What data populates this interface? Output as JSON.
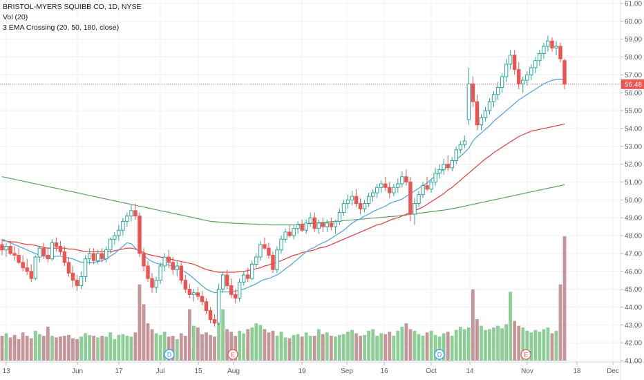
{
  "legend": {
    "title": "BRISTOL-MYERS SQUIBB CO, 1D, NYSE",
    "vol": "Vol (20)",
    "ema": "3 EMA Crossing (20, 50, 180, close)"
  },
  "colors": {
    "up": "#26a69a",
    "down": "#ef5350",
    "vol_up": "#7fc98a",
    "vol_down": "#c08a8f",
    "ema20": "#4a9fe0",
    "ema50": "#e03a3a",
    "ema180": "#5e9e5e",
    "price_line": "#ef5350"
  },
  "chart_data": {
    "type": "candlestick",
    "ylim": [
      41,
      61
    ],
    "y_ticks": [
      "41.00",
      "42.00",
      "43.00",
      "44.00",
      "45.00",
      "46.00",
      "47.00",
      "48.00",
      "49.00",
      "50.00",
      "51.00",
      "52.00",
      "53.00",
      "54.00",
      "55.00",
      "56.00",
      "57.00",
      "58.00",
      "59.00",
      "60.00",
      "61.00"
    ],
    "x_ticks": [
      "13",
      "Jun",
      "17",
      "Jul",
      "15",
      "Aug",
      "19",
      "Sep",
      "16",
      "Oct",
      "14",
      "Nov",
      "18",
      "Dec"
    ],
    "last_price": "56.48",
    "events": [
      "D",
      "E",
      "D",
      "E"
    ],
    "ohlc": [
      [
        47.5,
        47.8,
        46.9,
        47.2
      ],
      [
        47.2,
        47.6,
        46.8,
        47.4
      ],
      [
        47.4,
        47.7,
        46.9,
        47.0
      ],
      [
        47.0,
        47.4,
        46.6,
        46.9
      ],
      [
        46.9,
        47.3,
        46.4,
        46.5
      ],
      [
        46.5,
        46.9,
        46.0,
        46.2
      ],
      [
        46.2,
        46.7,
        45.8,
        46.0
      ],
      [
        46.0,
        46.4,
        45.4,
        45.6
      ],
      [
        45.6,
        46.9,
        45.5,
        46.8
      ],
      [
        46.8,
        47.4,
        46.5,
        47.3
      ],
      [
        47.3,
        47.6,
        46.7,
        46.9
      ],
      [
        46.9,
        47.3,
        46.5,
        46.7
      ],
      [
        46.7,
        47.8,
        46.6,
        47.6
      ],
      [
        47.6,
        47.9,
        47.1,
        47.4
      ],
      [
        47.4,
        47.7,
        46.9,
        47.1
      ],
      [
        47.1,
        47.4,
        46.3,
        46.5
      ],
      [
        46.5,
        46.8,
        45.7,
        45.9
      ],
      [
        45.9,
        46.3,
        45.1,
        45.5
      ],
      [
        45.5,
        45.8,
        44.9,
        45.2
      ],
      [
        45.2,
        46.0,
        45.0,
        45.7
      ],
      [
        45.7,
        46.9,
        45.4,
        46.7
      ],
      [
        46.7,
        47.3,
        46.4,
        47.0
      ],
      [
        47.0,
        47.3,
        46.4,
        46.6
      ],
      [
        46.6,
        47.2,
        46.4,
        47.0
      ],
      [
        47.0,
        47.3,
        46.5,
        46.7
      ],
      [
        46.7,
        47.4,
        46.5,
        47.2
      ],
      [
        47.2,
        47.9,
        47.0,
        47.8
      ],
      [
        47.8,
        48.2,
        47.5,
        48.0
      ],
      [
        48.0,
        48.6,
        47.7,
        48.3
      ],
      [
        48.3,
        49.0,
        48.0,
        48.8
      ],
      [
        48.8,
        49.3,
        48.5,
        49.1
      ],
      [
        49.1,
        49.7,
        48.8,
        49.4
      ],
      [
        49.4,
        49.8,
        48.9,
        49.1
      ],
      [
        49.1,
        49.3,
        46.8,
        47.0
      ],
      [
        47.0,
        47.3,
        46.0,
        46.3
      ],
      [
        46.3,
        46.6,
        45.4,
        45.6
      ],
      [
        45.6,
        45.9,
        44.8,
        45.1
      ],
      [
        45.1,
        45.7,
        44.8,
        45.5
      ],
      [
        45.5,
        46.5,
        45.3,
        46.3
      ],
      [
        46.3,
        47.0,
        46.0,
        46.8
      ],
      [
        46.8,
        47.2,
        46.2,
        46.5
      ],
      [
        46.5,
        46.8,
        45.8,
        46.1
      ],
      [
        46.1,
        46.6,
        45.7,
        46.3
      ],
      [
        46.3,
        46.5,
        45.3,
        45.5
      ],
      [
        45.5,
        45.8,
        44.8,
        45.0
      ],
      [
        45.0,
        45.3,
        44.5,
        44.7
      ],
      [
        44.7,
        45.0,
        44.3,
        44.8
      ],
      [
        44.8,
        45.1,
        44.4,
        44.6
      ],
      [
        44.6,
        44.9,
        44.1,
        44.3
      ],
      [
        44.3,
        44.5,
        43.6,
        43.8
      ],
      [
        43.8,
        44.0,
        43.1,
        43.3
      ],
      [
        43.3,
        43.6,
        42.9,
        43.1
      ],
      [
        43.1,
        45.3,
        43.0,
        45.0
      ],
      [
        45.0,
        46.0,
        44.8,
        45.8
      ],
      [
        45.8,
        46.1,
        45.0,
        45.2
      ],
      [
        45.2,
        45.6,
        44.5,
        44.7
      ],
      [
        44.7,
        45.0,
        44.2,
        44.5
      ],
      [
        44.5,
        45.6,
        44.3,
        45.4
      ],
      [
        45.4,
        46.0,
        45.2,
        45.8
      ],
      [
        45.8,
        46.2,
        45.4,
        45.6
      ],
      [
        45.6,
        46.6,
        45.5,
        46.4
      ],
      [
        46.4,
        47.0,
        46.2,
        46.8
      ],
      [
        46.8,
        47.7,
        46.6,
        47.5
      ],
      [
        47.5,
        47.9,
        47.2,
        47.3
      ],
      [
        47.3,
        47.6,
        46.7,
        46.9
      ],
      [
        46.9,
        47.1,
        45.9,
        46.1
      ],
      [
        46.1,
        47.4,
        45.9,
        47.2
      ],
      [
        47.2,
        48.0,
        47.0,
        47.8
      ],
      [
        47.8,
        48.4,
        47.6,
        48.2
      ],
      [
        48.2,
        48.6,
        47.9,
        48.0
      ],
      [
        48.0,
        48.6,
        47.8,
        48.4
      ],
      [
        48.4,
        48.8,
        48.1,
        48.6
      ],
      [
        48.6,
        48.9,
        48.2,
        48.3
      ],
      [
        48.3,
        48.9,
        48.1,
        48.7
      ],
      [
        48.7,
        49.3,
        48.5,
        49.0
      ],
      [
        49.0,
        49.3,
        48.2,
        48.4
      ],
      [
        48.4,
        48.9,
        48.1,
        48.7
      ],
      [
        48.7,
        49.0,
        48.2,
        48.5
      ],
      [
        48.5,
        48.9,
        48.2,
        48.7
      ],
      [
        48.7,
        49.0,
        48.3,
        48.5
      ],
      [
        48.5,
        48.9,
        48.1,
        48.8
      ],
      [
        48.8,
        49.5,
        48.6,
        49.3
      ],
      [
        49.3,
        50.0,
        49.1,
        49.8
      ],
      [
        49.8,
        50.3,
        49.5,
        50.0
      ],
      [
        50.0,
        50.5,
        49.7,
        50.2
      ],
      [
        50.2,
        50.6,
        49.6,
        49.8
      ],
      [
        49.8,
        50.1,
        49.2,
        49.5
      ],
      [
        49.5,
        50.0,
        49.3,
        49.8
      ],
      [
        49.8,
        50.4,
        49.6,
        50.2
      ],
      [
        50.2,
        50.6,
        49.9,
        50.4
      ],
      [
        50.4,
        50.9,
        50.1,
        50.7
      ],
      [
        50.7,
        51.1,
        50.4,
        50.9
      ],
      [
        50.9,
        51.3,
        50.5,
        50.7
      ],
      [
        50.7,
        51.0,
        50.1,
        50.4
      ],
      [
        50.4,
        50.9,
        50.2,
        50.7
      ],
      [
        50.7,
        51.2,
        50.4,
        50.9
      ],
      [
        50.9,
        51.6,
        50.7,
        51.3
      ],
      [
        51.3,
        51.7,
        50.8,
        51.0
      ],
      [
        51.0,
        51.3,
        48.8,
        49.2
      ],
      [
        49.2,
        50.1,
        48.6,
        49.8
      ],
      [
        49.8,
        50.5,
        49.6,
        50.3
      ],
      [
        50.3,
        51.0,
        50.1,
        50.8
      ],
      [
        50.8,
        51.3,
        50.5,
        50.6
      ],
      [
        50.6,
        51.2,
        50.4,
        51.0
      ],
      [
        51.0,
        51.8,
        50.8,
        51.5
      ],
      [
        51.5,
        52.0,
        51.2,
        51.7
      ],
      [
        51.7,
        52.3,
        51.4,
        52.0
      ],
      [
        52.0,
        52.5,
        51.6,
        51.8
      ],
      [
        51.8,
        52.4,
        51.6,
        52.2
      ],
      [
        52.2,
        53.0,
        52.0,
        52.8
      ],
      [
        52.8,
        53.3,
        52.6,
        53.1
      ],
      [
        53.1,
        53.6,
        52.9,
        53.3
      ],
      [
        54.5,
        57.4,
        54.2,
        56.5
      ],
      [
        56.5,
        56.9,
        55.2,
        55.5
      ],
      [
        55.5,
        55.9,
        53.9,
        54.2
      ],
      [
        54.2,
        54.8,
        53.9,
        54.6
      ],
      [
        54.6,
        55.2,
        54.4,
        55.0
      ],
      [
        55.0,
        55.7,
        54.8,
        55.5
      ],
      [
        55.5,
        56.1,
        55.2,
        55.9
      ],
      [
        55.9,
        56.6,
        55.6,
        56.3
      ],
      [
        56.3,
        57.1,
        56.0,
        56.9
      ],
      [
        56.9,
        57.9,
        56.6,
        57.6
      ],
      [
        57.6,
        58.4,
        57.3,
        58.1
      ],
      [
        58.1,
        58.4,
        57.0,
        57.3
      ],
      [
        57.3,
        57.7,
        56.2,
        56.5
      ],
      [
        56.5,
        56.9,
        56.0,
        56.7
      ],
      [
        56.7,
        57.2,
        56.4,
        57.0
      ],
      [
        57.0,
        57.6,
        56.7,
        57.4
      ],
      [
        57.4,
        58.0,
        57.1,
        57.8
      ],
      [
        57.8,
        58.4,
        57.5,
        58.2
      ],
      [
        58.2,
        58.8,
        57.9,
        58.6
      ],
      [
        58.6,
        59.2,
        58.3,
        58.9
      ],
      [
        58.9,
        59.1,
        58.3,
        58.5
      ],
      [
        58.5,
        58.9,
        58.1,
        58.6
      ],
      [
        58.6,
        58.8,
        57.7,
        57.9
      ],
      [
        57.8,
        57.9,
        56.2,
        56.48
      ]
    ],
    "volume": [
      0.3,
      0.33,
      0.28,
      0.31,
      0.26,
      0.34,
      0.3,
      0.27,
      0.36,
      0.32,
      0.3,
      0.41,
      0.3,
      0.28,
      0.29,
      0.3,
      0.31,
      0.27,
      0.26,
      0.29,
      0.33,
      0.31,
      0.3,
      0.28,
      0.3,
      0.29,
      0.34,
      0.26,
      0.31,
      0.32,
      0.3,
      0.29,
      0.34,
      0.92,
      0.68,
      0.45,
      0.38,
      0.33,
      0.31,
      0.35,
      0.29,
      0.3,
      0.26,
      0.33,
      0.3,
      0.62,
      0.42,
      0.4,
      0.32,
      0.34,
      0.31,
      0.29,
      0.78,
      0.62,
      0.38,
      0.35,
      0.3,
      0.36,
      0.33,
      0.38,
      0.4,
      0.45,
      0.43,
      0.38,
      0.34,
      0.36,
      0.3,
      0.35,
      0.28,
      0.27,
      0.31,
      0.32,
      0.29,
      0.34,
      0.3,
      0.3,
      0.38,
      0.32,
      0.34,
      0.3,
      0.29,
      0.31,
      0.32,
      0.35,
      0.37,
      0.33,
      0.3,
      0.31,
      0.36,
      0.38,
      0.3,
      0.33,
      0.32,
      0.35,
      0.3,
      0.36,
      0.41,
      0.45,
      0.38,
      0.36,
      0.32,
      0.3,
      0.34,
      0.36,
      0.31,
      0.29,
      0.33,
      0.35,
      0.3,
      0.37,
      0.41,
      0.38,
      0.4,
      0.86,
      0.5,
      0.42,
      0.37,
      0.38,
      0.4,
      0.42,
      0.39,
      0.44,
      0.83,
      0.48,
      0.42,
      0.4,
      0.36,
      0.34,
      0.37,
      0.35,
      0.38,
      0.4,
      0.33,
      0.36,
      0.92,
      1.5
    ],
    "ema20": [
      47.8,
      47.7,
      47.6,
      47.5,
      47.4,
      47.3,
      47.2,
      47.1,
      47.0,
      46.9,
      46.85,
      46.8,
      46.8,
      46.85,
      46.85,
      46.8,
      46.75,
      46.7,
      46.6,
      46.5,
      46.5,
      46.5,
      46.5,
      46.55,
      46.6,
      46.7,
      46.85,
      47.0,
      47.2,
      47.4,
      47.6,
      47.55,
      47.3,
      47.1,
      46.9,
      46.7,
      46.55,
      46.45,
      46.4,
      46.4,
      46.35,
      46.3,
      46.2,
      46.1,
      45.95,
      45.8,
      45.6,
      45.4,
      45.2,
      45.0,
      44.9,
      44.8,
      44.85,
      44.85,
      44.85,
      44.85,
      44.9,
      44.95,
      45.0,
      45.1,
      45.2,
      45.3,
      45.45,
      45.55,
      45.6,
      45.7,
      45.8,
      45.95,
      46.15,
      46.3,
      46.5,
      46.7,
      46.9,
      47.1,
      47.25,
      47.35,
      47.5,
      47.6,
      47.7,
      47.85,
      48.0,
      48.15,
      48.3,
      48.5,
      48.7,
      48.85,
      48.95,
      49.1,
      49.2,
      49.35,
      49.45,
      49.55,
      49.65,
      49.8,
      49.9,
      49.95,
      50.05,
      50.2,
      50.35,
      50.5,
      50.65,
      50.8,
      50.95,
      51.15,
      51.35,
      51.55,
      51.7,
      51.9,
      52.1,
      52.25,
      52.45,
      52.65,
      52.9,
      53.3,
      53.55,
      53.75,
      53.95,
      54.15,
      54.4,
      54.6,
      54.8,
      55.0,
      55.2,
      55.4,
      55.6,
      55.75,
      55.9,
      56.05,
      56.2,
      56.35,
      56.5,
      56.6,
      56.7,
      56.75,
      56.75,
      56.7
    ],
    "ema50": [
      47.7,
      47.7,
      47.65,
      47.65,
      47.6,
      47.55,
      47.5,
      47.5,
      47.45,
      47.4,
      47.35,
      47.3,
      47.3,
      47.3,
      47.3,
      47.3,
      47.25,
      47.25,
      47.2,
      47.15,
      47.1,
      47.1,
      47.1,
      47.1,
      47.1,
      47.1,
      47.1,
      47.15,
      47.2,
      47.25,
      47.3,
      47.3,
      47.25,
      47.15,
      47.05,
      46.95,
      46.9,
      46.85,
      46.8,
      46.75,
      46.7,
      46.65,
      46.6,
      46.55,
      46.5,
      46.45,
      46.4,
      46.3,
      46.2,
      46.1,
      46.05,
      46.0,
      45.95,
      45.95,
      45.95,
      45.95,
      45.95,
      46.0,
      46.0,
      46.05,
      46.1,
      46.15,
      46.2,
      46.3,
      46.35,
      46.45,
      46.5,
      46.6,
      46.7,
      46.8,
      46.9,
      46.95,
      47.05,
      47.1,
      47.15,
      47.2,
      47.3,
      47.35,
      47.4,
      47.5,
      47.6,
      47.7,
      47.8,
      47.9,
      48.0,
      48.1,
      48.2,
      48.3,
      48.4,
      48.5,
      48.6,
      48.65,
      48.75,
      48.85,
      48.95,
      49.0,
      49.1,
      49.2,
      49.3,
      49.4,
      49.5,
      49.6,
      49.75,
      49.9,
      50.05,
      50.2,
      50.35,
      50.55,
      50.7,
      50.9,
      51.1,
      51.3,
      51.5,
      51.7,
      51.9,
      52.1,
      52.3,
      52.45,
      52.65,
      52.8,
      52.95,
      53.1,
      53.25,
      53.4,
      53.55,
      53.65,
      53.75,
      53.85,
      53.9,
      53.95,
      54.0,
      54.05,
      54.1,
      54.15,
      54.2,
      54.25
    ],
    "ema180": [
      51.3,
      51.25,
      51.2,
      51.15,
      51.1,
      51.05,
      51.0,
      50.95,
      50.9,
      50.85,
      50.8,
      50.75,
      50.7,
      50.65,
      50.6,
      50.55,
      50.5,
      50.45,
      50.4,
      50.35,
      50.3,
      50.25,
      50.2,
      50.15,
      50.1,
      50.05,
      50.0,
      49.95,
      49.9,
      49.85,
      49.8,
      49.75,
      49.7,
      49.65,
      49.6,
      49.55,
      49.5,
      49.45,
      49.4,
      49.35,
      49.3,
      49.25,
      49.2,
      49.15,
      49.1,
      49.05,
      49.0,
      48.95,
      48.9,
      48.85,
      48.8,
      48.78,
      48.76,
      48.74,
      48.72,
      48.7,
      48.69,
      48.68,
      48.67,
      48.66,
      48.65,
      48.64,
      48.63,
      48.62,
      48.61,
      48.6,
      48.6,
      48.6,
      48.6,
      48.6,
      48.6,
      48.62,
      48.64,
      48.66,
      48.68,
      48.7,
      48.72,
      48.74,
      48.76,
      48.78,
      48.8,
      48.82,
      48.84,
      48.86,
      48.88,
      48.9,
      48.92,
      48.94,
      48.96,
      48.98,
      49.0,
      49.02,
      49.04,
      49.06,
      49.08,
      49.1,
      49.13,
      49.16,
      49.19,
      49.22,
      49.25,
      49.28,
      49.31,
      49.34,
      49.37,
      49.4,
      49.43,
      49.47,
      49.51,
      49.55,
      49.6,
      49.65,
      49.7,
      49.75,
      49.8,
      49.85,
      49.9,
      49.95,
      50.0,
      50.05,
      50.1,
      50.15,
      50.2,
      50.25,
      50.3,
      50.35,
      50.4,
      50.45,
      50.5,
      50.55,
      50.6,
      50.65,
      50.7,
      50.75,
      50.8,
      50.85
    ]
  }
}
